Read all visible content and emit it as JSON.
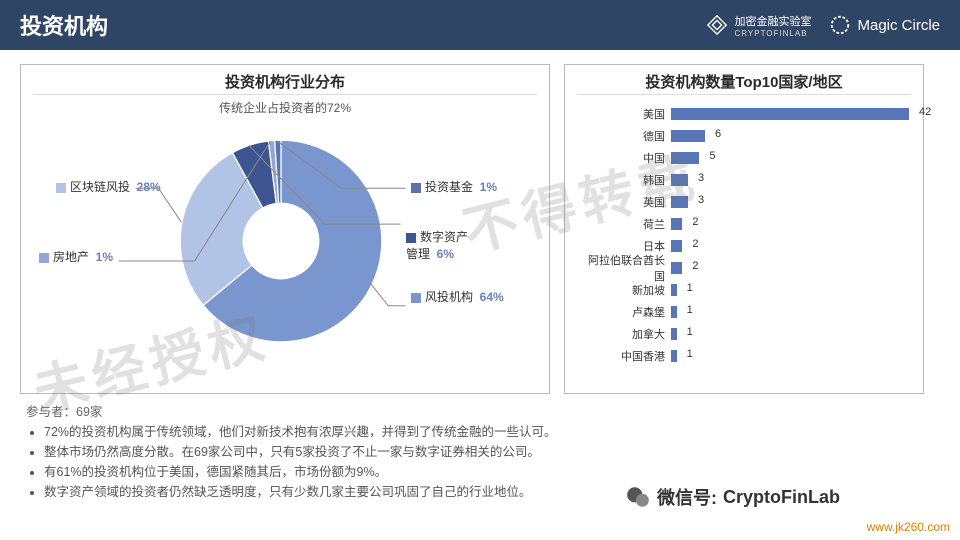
{
  "header": {
    "title": "投资机构",
    "brand1": {
      "name": "加密金融实验室",
      "sub": "CRYPTOFINLAB"
    },
    "brand2": {
      "name": "Magic Circle"
    }
  },
  "donut_chart": {
    "title": "投资机构行业分布",
    "subtitle": "传统企业占投资者的72%",
    "type": "donut",
    "inner_radius": 0.35,
    "background": "#ffffff",
    "slices": [
      {
        "label": "风投机构",
        "value": 64,
        "color": "#7a96cf"
      },
      {
        "label": "区块链风投",
        "value": 28,
        "color": "#b1c4e6"
      },
      {
        "label": "数字资产管理",
        "value": 6,
        "color": "#3c5590"
      },
      {
        "label": "房地产",
        "value": 1,
        "color": "#8fa8d8"
      },
      {
        "label": "投资基金",
        "value": 1,
        "color": "#5b73ad"
      }
    ],
    "legend_text_color": "#333333",
    "pct_color": "#6a82b5",
    "title_fontsize": 15,
    "label_fontsize": 12
  },
  "bar_chart": {
    "title": "投资机构数量Top10国家/地区",
    "type": "bar-horizontal",
    "max": 42,
    "bar_color": "#5776b8",
    "label_color": "#333333",
    "label_fontsize": 11,
    "rows": [
      {
        "label": "美国",
        "value": 42
      },
      {
        "label": "德国",
        "value": 6
      },
      {
        "label": "中国",
        "value": 5
      },
      {
        "label": "韩国",
        "value": 3
      },
      {
        "label": "英国",
        "value": 3
      },
      {
        "label": "荷兰",
        "value": 2
      },
      {
        "label": "日本",
        "value": 2
      },
      {
        "label": "阿拉伯联合酋长国",
        "value": 2
      },
      {
        "label": "新加坡",
        "value": 1
      },
      {
        "label": "卢森堡",
        "value": 1
      },
      {
        "label": "加拿大",
        "value": 1
      },
      {
        "label": "中国香港",
        "value": 1
      }
    ]
  },
  "footer": {
    "header": "参与者：69家",
    "bullets": [
      "72%的投资机构属于传统领域，他们对新技术抱有浓厚兴趣，并得到了传统金融的一些认可。",
      "整体市场仍然高度分散。在69家公司中，只有5家投资了不止一家与数字证券相关的公司。",
      "有61%的投资机构位于美国，德国紧随其后，市场份额为9%。",
      "数字资产领域的投资者仍然缺乏透明度，只有少数几家主要公司巩固了自己的行业地位。"
    ]
  },
  "watermarks": {
    "w1": "未经授权",
    "w2": "不得转载"
  },
  "wechat": {
    "prefix": "微信号:",
    "id": "CryptoFinLab"
  },
  "url": "www.jk260.com",
  "colors": {
    "header_bg": "#2f4565"
  }
}
